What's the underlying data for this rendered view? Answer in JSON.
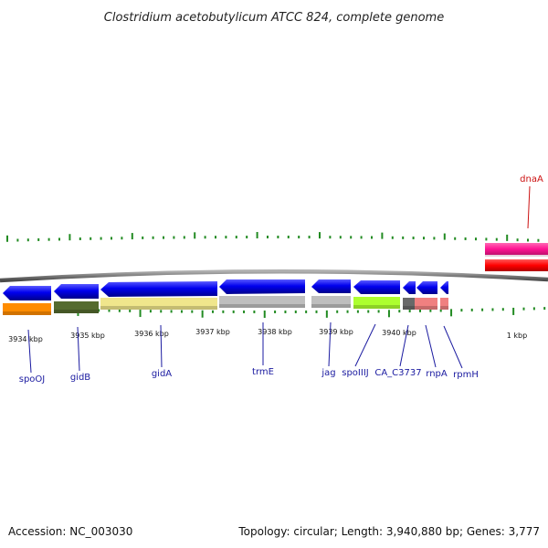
{
  "title": "Clostridium acetobutylicum ATCC 824, complete genome",
  "footer": {
    "accession": "Accession: NC_003030",
    "summary": "Topology: circular; Length: 3,940,880 bp; Genes: 3,777"
  },
  "colors": {
    "tick": "#228B22",
    "backbone": "#808080",
    "gene_forward": "#0000ee",
    "gene_label": "#1a1aa0",
    "origin_label": "#cc1111"
  },
  "scale_labels": [
    "3934 kbp",
    "3935 kbp",
    "3936 kbp",
    "3937 kbp",
    "3938 kbp",
    "3939 kbp",
    "3940 kbp",
    "1 kbp"
  ],
  "genes": [
    {
      "label": "spoOJ",
      "color": "#ff8c00"
    },
    {
      "label": "gidB",
      "color": "#556b2f"
    },
    {
      "label": "gidA",
      "color": "#f0e68c"
    },
    {
      "label": "trmE",
      "color": "#bebebe"
    },
    {
      "label": "jag",
      "color": "#bebebe"
    },
    {
      "label": "spoIIIJ",
      "color": "#adff2f"
    },
    {
      "label": "CA_C3737",
      "color": "#696969"
    },
    {
      "label": "rnpA",
      "color": "#f08080"
    },
    {
      "label": "rpmH",
      "color": "#f08080"
    },
    {
      "label": "dnaA",
      "color": "#ff0000",
      "arrow_color": "#ff1493"
    }
  ]
}
